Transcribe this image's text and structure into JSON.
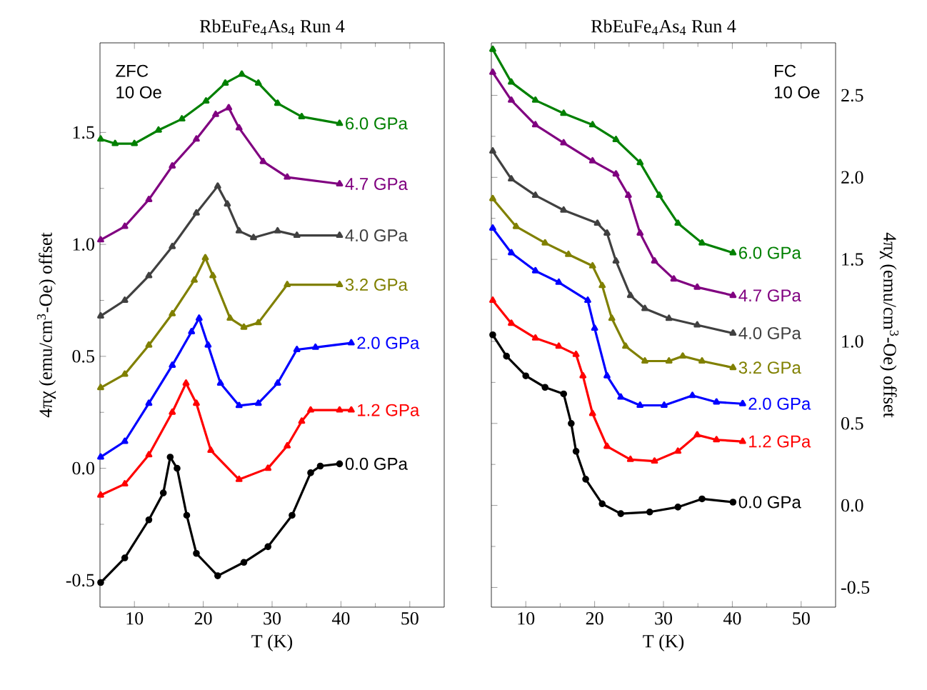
{
  "chart_data": [
    {
      "type": "line",
      "title": "RbEuFe$_{4}$As$_{4}$ Run 4",
      "xlabel": "T (K)",
      "ylabel": "4πχ (emu/cm$^{3}$-Oe) offset",
      "annotations": [
        "ZFC",
        "10 Oe"
      ],
      "xlim": [
        5,
        55
      ],
      "ylim": [
        -0.62,
        1.9
      ],
      "xticks": [
        10,
        20,
        30,
        40,
        50
      ],
      "yticks": [
        {
          "value": -0.5,
          "label": "-0.5"
        },
        {
          "value": 0,
          "label": "0.0"
        },
        {
          "value": 0.5,
          "label": "0.5"
        },
        {
          "value": 1,
          "label": "1.0"
        },
        {
          "value": 1.5,
          "label": "1.5"
        }
      ],
      "series": [
        {
          "name": "0.0 GPa",
          "color": "#000000",
          "marker": "circle",
          "x": [
            5.1,
            8.6,
            12.1,
            14.2,
            15.2,
            16.2,
            17.6,
            19.0,
            22.1,
            25.9,
            29.4,
            32.9,
            35.6,
            37.0,
            39.8
          ],
          "values": [
            -0.51,
            -0.4,
            -0.23,
            -0.11,
            0.05,
            0.0,
            -0.21,
            -0.38,
            -0.48,
            -0.42,
            -0.35,
            -0.21,
            -0.02,
            0.01,
            0.02
          ]
        },
        {
          "name": "1.2 GPa",
          "color": "#ff0000",
          "marker": "triangle",
          "x": [
            5.1,
            8.6,
            12.1,
            15.5,
            17.5,
            19.0,
            21.1,
            25.2,
            29.4,
            32.2,
            34.3,
            35.6,
            39.8,
            41.5
          ],
          "values": [
            -0.12,
            -0.07,
            0.06,
            0.25,
            0.38,
            0.29,
            0.08,
            -0.05,
            0.0,
            0.1,
            0.21,
            0.26,
            0.26,
            0.26
          ]
        },
        {
          "name": "2.0 GPa",
          "color": "#0000ff",
          "marker": "triangle",
          "x": [
            5.1,
            8.6,
            12.1,
            15.5,
            18.3,
            19.4,
            20.7,
            22.5,
            25.2,
            28.0,
            30.8,
            33.6,
            36.3,
            41.5
          ],
          "values": [
            0.05,
            0.12,
            0.29,
            0.46,
            0.61,
            0.67,
            0.55,
            0.38,
            0.28,
            0.29,
            0.38,
            0.53,
            0.54,
            0.56
          ]
        },
        {
          "name": "3.2 GPa",
          "color": "#808000",
          "marker": "triangle",
          "x": [
            5.1,
            8.6,
            12.1,
            15.5,
            18.7,
            20.3,
            21.4,
            23.9,
            25.9,
            28.0,
            32.2,
            39.8
          ],
          "values": [
            0.36,
            0.42,
            0.55,
            0.69,
            0.84,
            0.94,
            0.86,
            0.67,
            0.63,
            0.65,
            0.82,
            0.82
          ]
        },
        {
          "name": "4.0 GPa",
          "color": "#404040",
          "marker": "triangle",
          "x": [
            5.1,
            8.6,
            12.1,
            15.5,
            19.0,
            22.1,
            23.5,
            25.2,
            27.3,
            30.8,
            33.6,
            39.8
          ],
          "values": [
            0.68,
            0.75,
            0.86,
            0.99,
            1.14,
            1.26,
            1.18,
            1.06,
            1.03,
            1.06,
            1.04,
            1.04
          ]
        },
        {
          "name": "4.7 GPa",
          "color": "#800080",
          "marker": "triangle",
          "x": [
            5.1,
            8.6,
            12.1,
            15.5,
            19.0,
            21.8,
            23.7,
            25.2,
            28.7,
            32.2,
            39.8
          ],
          "values": [
            1.02,
            1.08,
            1.2,
            1.35,
            1.47,
            1.58,
            1.61,
            1.52,
            1.37,
            1.3,
            1.27
          ]
        },
        {
          "name": "6.0 GPa",
          "color": "#008000",
          "marker": "triangle",
          "x": [
            5.1,
            7.2,
            10.0,
            13.5,
            16.9,
            20.4,
            23.2,
            25.6,
            28.0,
            30.8,
            34.3,
            39.8
          ],
          "values": [
            1.47,
            1.45,
            1.45,
            1.51,
            1.56,
            1.64,
            1.72,
            1.76,
            1.72,
            1.63,
            1.57,
            1.54
          ]
        }
      ]
    },
    {
      "type": "line",
      "title": "RbEuFe$_{4}$As$_{4}$ Run 4",
      "xlabel": "T (K)",
      "ylabel": "4πχ (emu/cm$^{3}$-Oe) offset",
      "annotations": [
        "FC",
        "10 Oe"
      ],
      "xlim": [
        5,
        55
      ],
      "ylim": [
        -0.62,
        2.82
      ],
      "xticks": [
        10,
        20,
        30,
        40,
        50
      ],
      "yticks": [
        {
          "value": -0.5,
          "label": "-0.5"
        },
        {
          "value": 0,
          "label": "0.0"
        },
        {
          "value": 0.5,
          "label": "0.5"
        },
        {
          "value": 1,
          "label": "1.0"
        },
        {
          "value": 1.5,
          "label": "1.5"
        },
        {
          "value": 2,
          "label": "2.0"
        },
        {
          "value": 2.5,
          "label": "2.5"
        }
      ],
      "series": [
        {
          "name": "0.0 GPa",
          "color": "#000000",
          "marker": "circle",
          "x": [
            5.2,
            7.2,
            10.0,
            12.8,
            15.5,
            16.6,
            17.3,
            18.7,
            21.1,
            23.8,
            28.0,
            32.1,
            35.6,
            40.1
          ],
          "values": [
            1.04,
            0.91,
            0.79,
            0.72,
            0.68,
            0.5,
            0.33,
            0.16,
            0.01,
            -0.05,
            -0.04,
            -0.01,
            0.04,
            0.02
          ]
        },
        {
          "name": "1.2 GPa",
          "color": "#ff0000",
          "marker": "triangle",
          "x": [
            5.2,
            7.9,
            11.4,
            14.8,
            17.3,
            18.3,
            19.7,
            21.8,
            25.2,
            28.7,
            32.1,
            34.9,
            37.7,
            41.5
          ],
          "values": [
            1.25,
            1.11,
            1.02,
            0.97,
            0.92,
            0.79,
            0.56,
            0.36,
            0.28,
            0.27,
            0.33,
            0.43,
            0.4,
            0.39
          ]
        },
        {
          "name": "2.0 GPa",
          "color": "#0000ff",
          "marker": "triangle",
          "x": [
            5.2,
            7.9,
            11.4,
            14.8,
            19.0,
            20.0,
            21.8,
            23.8,
            26.6,
            30.1,
            34.2,
            37.7,
            41.5
          ],
          "values": [
            1.69,
            1.54,
            1.43,
            1.36,
            1.25,
            1.08,
            0.79,
            0.66,
            0.61,
            0.61,
            0.67,
            0.63,
            0.62
          ]
        },
        {
          "name": "3.2 GPa",
          "color": "#808000",
          "marker": "triangle",
          "x": [
            5.2,
            8.6,
            12.8,
            16.2,
            19.7,
            21.1,
            22.5,
            24.5,
            27.3,
            30.8,
            32.8,
            35.6,
            40.1
          ],
          "values": [
            1.87,
            1.7,
            1.6,
            1.53,
            1.46,
            1.34,
            1.14,
            0.97,
            0.88,
            0.88,
            0.91,
            0.88,
            0.84
          ]
        },
        {
          "name": "4.0 GPa",
          "color": "#404040",
          "marker": "triangle",
          "x": [
            5.2,
            7.9,
            11.4,
            15.5,
            20.4,
            21.8,
            23.1,
            25.2,
            27.3,
            30.8,
            34.9,
            40.1
          ],
          "values": [
            2.16,
            1.99,
            1.89,
            1.8,
            1.72,
            1.66,
            1.49,
            1.28,
            1.2,
            1.14,
            1.1,
            1.05
          ]
        },
        {
          "name": "4.7 GPa",
          "color": "#800080",
          "marker": "triangle",
          "x": [
            5.2,
            7.9,
            11.4,
            15.5,
            19.7,
            23.1,
            24.9,
            26.6,
            28.7,
            31.5,
            34.9,
            40.1
          ],
          "values": [
            2.64,
            2.47,
            2.32,
            2.21,
            2.1,
            2.02,
            1.89,
            1.66,
            1.49,
            1.38,
            1.33,
            1.28
          ]
        },
        {
          "name": "6.0 GPa",
          "color": "#008000",
          "marker": "triangle",
          "x": [
            5.2,
            7.9,
            11.4,
            15.5,
            19.7,
            23.1,
            26.6,
            29.4,
            32.1,
            35.6,
            40.1
          ],
          "values": [
            2.78,
            2.58,
            2.47,
            2.39,
            2.32,
            2.23,
            2.09,
            1.89,
            1.72,
            1.6,
            1.54
          ]
        }
      ]
    }
  ]
}
